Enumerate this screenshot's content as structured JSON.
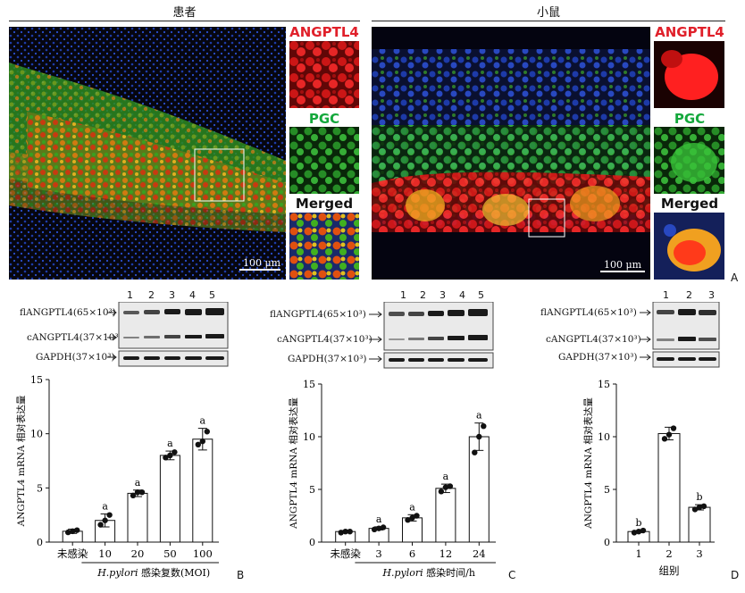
{
  "figure": {
    "headers": {
      "patient": "患者",
      "mouse": "小鼠"
    },
    "if_labels": {
      "angptl4": "ANGPTL4",
      "pgc": "PGC",
      "merged": "Merged"
    },
    "scale": "100 μm",
    "panel_letters": {
      "a": "A",
      "b": "B",
      "c": "C",
      "d": "D"
    },
    "blot_labels": {
      "fl": "flANGPTL4(65×10³)",
      "c": "cANGPTL4(37×10³)",
      "gapdh": "GAPDH(37×10³)"
    },
    "colors": {
      "angptl4_red": "#e0202a",
      "pgc_green": "#14a83c",
      "nucleus_blue": "#1e3ca8"
    }
  },
  "blots": [
    {
      "lanes": [
        "1",
        "2",
        "3",
        "4",
        "5"
      ]
    },
    {
      "lanes": [
        "1",
        "2",
        "3",
        "4",
        "5"
      ]
    },
    {
      "lanes": [
        "1",
        "2",
        "3"
      ]
    }
  ],
  "chart_data": [
    {
      "type": "bar",
      "ylabel": "ANGPTL4 mRNA 相对表达量",
      "xlabel_italic": "H.pylori",
      "xlabel_rest": " 感染复数(MOI)",
      "categories": [
        "未感染",
        "10",
        "20",
        "50",
        "100"
      ],
      "values": [
        1.0,
        2.0,
        4.5,
        8.0,
        9.5
      ],
      "errors": [
        0.2,
        0.6,
        0.3,
        0.4,
        1.0
      ],
      "points": [
        [
          0.9,
          1.0,
          1.1
        ],
        [
          1.6,
          2.0,
          2.5
        ],
        [
          4.3,
          4.6,
          4.6
        ],
        [
          7.8,
          8.0,
          8.3
        ],
        [
          9.0,
          9.3,
          10.2
        ]
      ],
      "annotations": [
        "",
        "a",
        "a",
        "a",
        "a"
      ],
      "ylim": [
        0,
        15
      ],
      "yticks": [
        0,
        5,
        10,
        15
      ]
    },
    {
      "type": "bar",
      "ylabel": "ANGPTL4 mRNA 相对表达量",
      "xlabel_italic": "H.pylori",
      "xlabel_rest": " 感染时间/h",
      "categories": [
        "未感染",
        "3",
        "6",
        "12",
        "24"
      ],
      "values": [
        1.0,
        1.3,
        2.3,
        5.1,
        10.0
      ],
      "errors": [
        0.1,
        0.15,
        0.3,
        0.4,
        1.3
      ],
      "points": [
        [
          0.9,
          1.0,
          1.0
        ],
        [
          1.2,
          1.3,
          1.4
        ],
        [
          2.1,
          2.3,
          2.5
        ],
        [
          4.8,
          5.2,
          5.3
        ],
        [
          8.5,
          10.0,
          11.0
        ]
      ],
      "annotations": [
        "",
        "a",
        "a",
        "a",
        "a"
      ],
      "ylim": [
        0,
        15
      ],
      "yticks": [
        0,
        5,
        10,
        15
      ]
    },
    {
      "type": "bar",
      "ylabel": "ANGPTL4 mRNA 相对表达量",
      "xlabel": "组别",
      "categories": [
        "1",
        "2",
        "3"
      ],
      "values": [
        1.0,
        10.3,
        3.3
      ],
      "errors": [
        0.1,
        0.6,
        0.25
      ],
      "points": [
        [
          0.9,
          1.0,
          1.1
        ],
        [
          9.8,
          10.2,
          10.8
        ],
        [
          3.1,
          3.3,
          3.4
        ]
      ],
      "annotations": [
        "b",
        "",
        "b"
      ],
      "ylim": [
        0,
        15
      ],
      "yticks": [
        0,
        5,
        10,
        15
      ]
    }
  ]
}
